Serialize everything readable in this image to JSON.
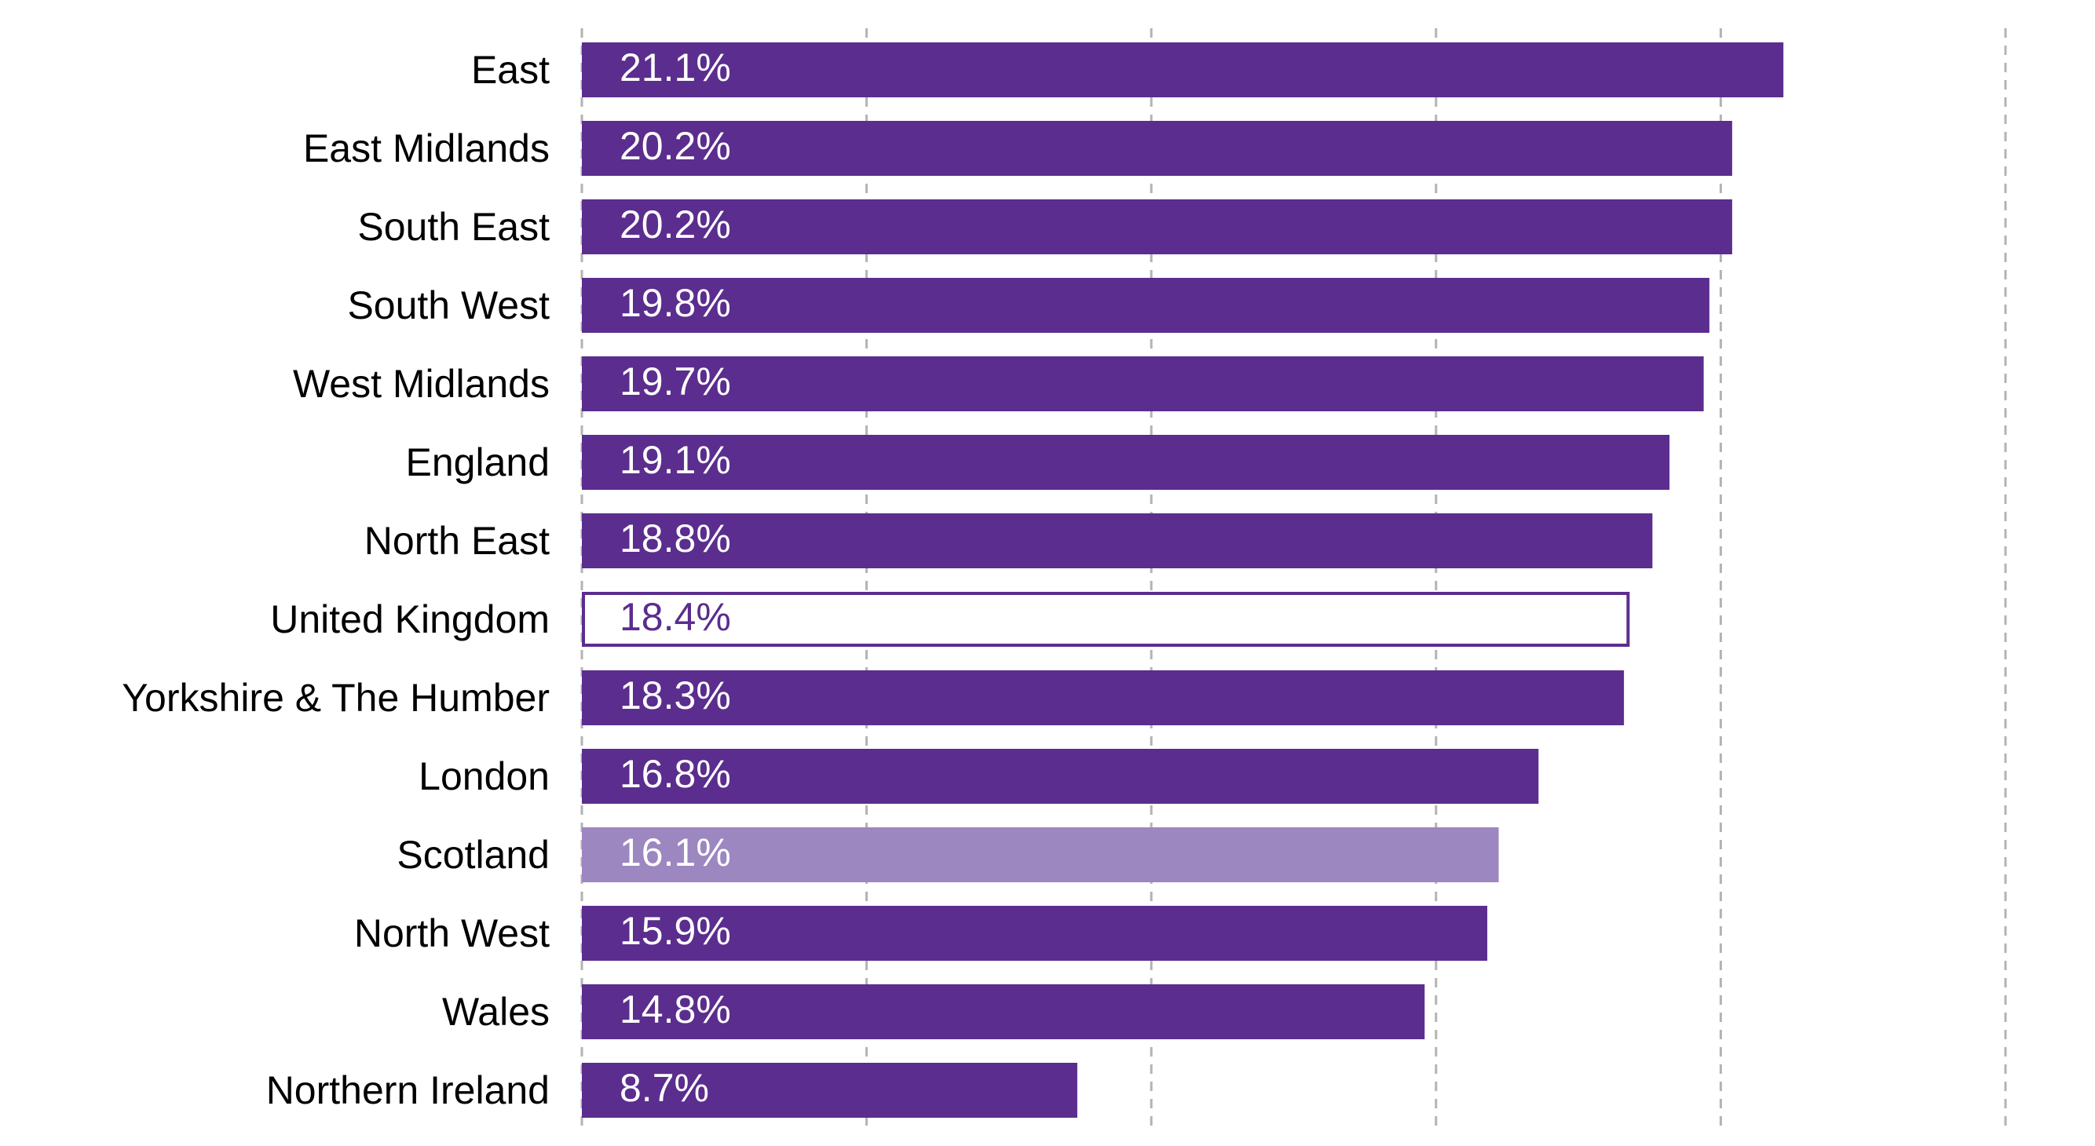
{
  "chart_data": {
    "type": "bar",
    "orientation": "horizontal",
    "title": "",
    "xlabel": "",
    "ylabel": "",
    "xlim": [
      0,
      25
    ],
    "grid": true,
    "legend": "none",
    "categories": [
      "East",
      "East Midlands",
      "South East",
      "South West",
      "West Midlands",
      "England",
      "North East",
      "United Kingdom",
      "Yorkshire & The Humber",
      "London",
      "Scotland",
      "North West",
      "Wales",
      "Northern Ireland"
    ],
    "values": [
      21.1,
      20.2,
      20.2,
      19.8,
      19.7,
      19.1,
      18.8,
      18.4,
      18.3,
      16.8,
      16.1,
      15.9,
      14.8,
      8.7
    ],
    "data_labels": [
      "21.1%",
      "20.2%",
      "20.2%",
      "19.8%",
      "19.7%",
      "19.1%",
      "18.8%",
      "18.4%",
      "18.3%",
      "16.8%",
      "16.1%",
      "15.9%",
      "14.8%",
      "8.7%"
    ],
    "styles": [
      "solid",
      "solid",
      "solid",
      "solid",
      "solid",
      "solid",
      "solid",
      "outline",
      "solid",
      "solid",
      "light",
      "solid",
      "solid",
      "solid"
    ],
    "colors": {
      "solid": "#5b2d8e",
      "light": "#9c87c0",
      "outline_stroke": "#5b2d8e",
      "outline_fill": "#ffffff",
      "label_on_dark": "#ffffff",
      "label_on_outline": "#5b2d8e",
      "grid": "#b3b3b3"
    }
  }
}
